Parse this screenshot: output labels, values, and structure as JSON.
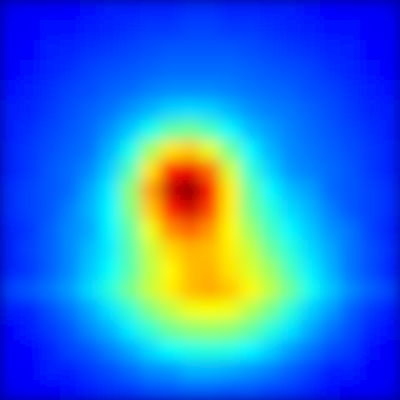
{
  "chart_data": {
    "type": "heatmap",
    "colormap": "jet",
    "clim": [
      0,
      100
    ],
    "values": [
      [
        11,
        12,
        12,
        13,
        14,
        15,
        15,
        16,
        16,
        17,
        17,
        16,
        16,
        15,
        15,
        14,
        13,
        12,
        12,
        11
      ],
      [
        12,
        12,
        14,
        14,
        15,
        16,
        17,
        18,
        18,
        19,
        19,
        18,
        18,
        17,
        16,
        15,
        14,
        14,
        12,
        12
      ],
      [
        12,
        13,
        15,
        16,
        17,
        18,
        19,
        20,
        21,
        21,
        21,
        21,
        20,
        19,
        18,
        17,
        16,
        15,
        13,
        12
      ],
      [
        13,
        14,
        16,
        17,
        19,
        20,
        21,
        22,
        23,
        23,
        23,
        23,
        22,
        21,
        20,
        19,
        17,
        16,
        14,
        13
      ],
      [
        14,
        15,
        17,
        19,
        20,
        22,
        23,
        25,
        26,
        26,
        26,
        25,
        24,
        23,
        22,
        20,
        19,
        17,
        15,
        14
      ],
      [
        15,
        16,
        18,
        20,
        22,
        24,
        27,
        30,
        33,
        34,
        33,
        30,
        27,
        25,
        24,
        22,
        20,
        18,
        16,
        15
      ],
      [
        15,
        17,
        19,
        21,
        23,
        27,
        32,
        39,
        46,
        48,
        44,
        37,
        31,
        28,
        25,
        23,
        21,
        19,
        17,
        15
      ],
      [
        16,
        18,
        20,
        22,
        24,
        30,
        39,
        53,
        65,
        68,
        60,
        48,
        37,
        30,
        26,
        24,
        22,
        20,
        18,
        16
      ],
      [
        16,
        18,
        21,
        23,
        26,
        33,
        45,
        65,
        84,
        89,
        77,
        58,
        42,
        33,
        27,
        25,
        23,
        21,
        18,
        16
      ],
      [
        17,
        19,
        21,
        23,
        29,
        36,
        51,
        72,
        93,
        99,
        86,
        64,
        47,
        37,
        31,
        28,
        23,
        21,
        19,
        17
      ],
      [
        17,
        19,
        21,
        25,
        30,
        37,
        50,
        68,
        85,
        92,
        81,
        64,
        49,
        41,
        34,
        30,
        25,
        21,
        19,
        17
      ],
      [
        16,
        18,
        22,
        26,
        29,
        37,
        47,
        61,
        74,
        78,
        73,
        63,
        53,
        44,
        37,
        32,
        27,
        24,
        19,
        16
      ],
      [
        16,
        19,
        22,
        26,
        31,
        36,
        46,
        57,
        66,
        70,
        69,
        64,
        57,
        48,
        41,
        34,
        29,
        24,
        20,
        17
      ],
      [
        16,
        18,
        22,
        26,
        32,
        38,
        46,
        56,
        63,
        69,
        70,
        65,
        59,
        53,
        44,
        36,
        30,
        24,
        20,
        16
      ],
      [
        19,
        21,
        24,
        28,
        34,
        41,
        49,
        57,
        64,
        69,
        71,
        68,
        63,
        56,
        48,
        39,
        32,
        26,
        22,
        19
      ],
      [
        15,
        16,
        20,
        24,
        29,
        35,
        42,
        50,
        56,
        61,
        62,
        61,
        55,
        49,
        41,
        33,
        28,
        22,
        18,
        15
      ],
      [
        13,
        15,
        18,
        21,
        26,
        30,
        36,
        42,
        48,
        51,
        52,
        51,
        47,
        41,
        35,
        29,
        24,
        20,
        16,
        14
      ],
      [
        12,
        13,
        16,
        19,
        21,
        25,
        29,
        34,
        38,
        40,
        41,
        40,
        37,
        33,
        28,
        24,
        20,
        18,
        14,
        12
      ],
      [
        12,
        12,
        15,
        15,
        18,
        20,
        23,
        26,
        27,
        30,
        30,
        29,
        27,
        25,
        22,
        19,
        15,
        15,
        12,
        12
      ],
      [
        11,
        12,
        12,
        14,
        15,
        17,
        18,
        20,
        21,
        22,
        22,
        21,
        21,
        19,
        18,
        16,
        14,
        12,
        12,
        11
      ]
    ]
  }
}
